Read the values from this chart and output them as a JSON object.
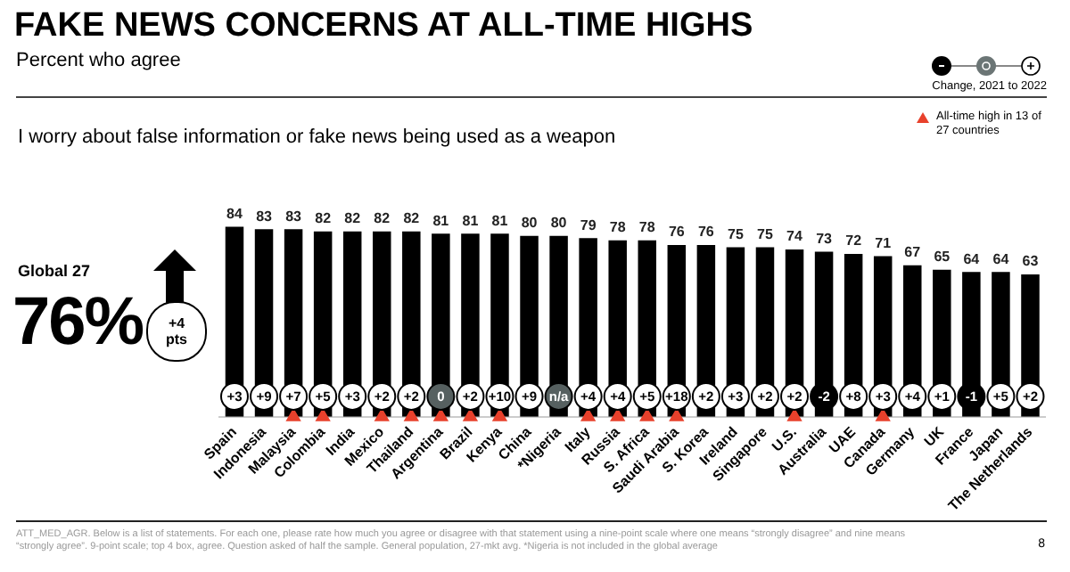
{
  "chart_data": {
    "type": "bar",
    "title": "FAKE NEWS CONCERNS AT ALL-TIME HIGHS",
    "subtitle": "Percent who agree",
    "categories": [
      "Spain",
      "Indonesia",
      "Malaysia",
      "Colombia",
      "India",
      "Mexico",
      "Thailand",
      "Argentina",
      "Brazil",
      "Kenya",
      "China",
      "*Nigeria",
      "Italy",
      "Russia",
      "S. Africa",
      "Saudi Arabia",
      "S. Korea",
      "Ireland",
      "Singapore",
      "U.S.",
      "Australia",
      "UAE",
      "Canada",
      "Germany",
      "UK",
      "France",
      "Japan",
      "The Netherlands"
    ],
    "series": [
      {
        "color": "#000000",
        "values": [
          84,
          83,
          83,
          82,
          82,
          82,
          82,
          81,
          81,
          81,
          80,
          80,
          79,
          78,
          78,
          76,
          76,
          75,
          75,
          74,
          73,
          72,
          71,
          67,
          65,
          64,
          64,
          63
        ],
        "value_labels": [
          "84",
          "83",
          "83",
          "82",
          "82",
          "82",
          "82",
          "81",
          "81",
          "81",
          "80",
          "80",
          "79",
          "78",
          "78",
          "76",
          "76",
          "75",
          "75",
          "74",
          "73",
          "72",
          "71",
          "67",
          "65",
          "64",
          "64",
          "63"
        ]
      },
      {
        "type": "scatter",
        "name": "All-time high in 13 of 27 countries",
        "color": "#e8412c",
        "marker": "triangle",
        "x": [
          "Malaysia",
          "Colombia",
          "Mexico",
          "Thailand",
          "Argentina",
          "Brazil",
          "Kenya",
          "Italy",
          "Russia",
          "S. Africa",
          "Saudi Arabia",
          "U.S.",
          "Canada"
        ],
        "values": [
          0,
          0,
          0,
          0,
          0,
          0,
          0,
          0,
          0,
          0,
          0,
          0,
          0
        ]
      }
    ],
    "legend": "top right",
    "grid": false,
    "annotations": [
      "I worry about false information or fake news being used as a weapon",
      "Global 27",
      "76%",
      "+4 pts",
      "Change, 2021 to 2022",
      "ATT_MED_AGR. Below is a list of statements. For each one, please rate how much you agree or disagree with that statement using a nine-point scale where one means “strongly disagree” and nine means “strongly agree”. 9-point scale; top 4 box, agree. Question asked of half the sample. General population, 27-mkt avg. *Nigeria is not included in the global average",
      "8",
      {
        "text": "+3",
        "x": "Spain",
        "y": 9
      },
      {
        "text": "+9",
        "x": "Indonesia",
        "y": 9
      },
      {
        "text": "+7",
        "x": "Malaysia",
        "y": 9
      },
      {
        "text": "+5",
        "x": "Colombia",
        "y": 9
      },
      {
        "text": "+3",
        "x": "India",
        "y": 9
      },
      {
        "text": "+2",
        "x": "Mexico",
        "y": 9
      },
      {
        "text": "+2",
        "x": "Thailand",
        "y": 9
      },
      {
        "text": "0",
        "x": "Argentina",
        "y": 9
      },
      {
        "text": "+2",
        "x": "Brazil",
        "y": 9
      },
      {
        "text": "+10",
        "x": "Kenya",
        "y": 9
      },
      {
        "text": "+9",
        "x": "China",
        "y": 9
      },
      {
        "text": "n/a",
        "x": "*Nigeria",
        "y": 9
      },
      {
        "text": "+4",
        "x": "Italy",
        "y": 9
      },
      {
        "text": "+4",
        "x": "Russia",
        "y": 9
      },
      {
        "text": "+5",
        "x": "S. Africa",
        "y": 9
      },
      {
        "text": "+18",
        "x": "Saudi Arabia",
        "y": 9
      },
      {
        "text": "+2",
        "x": "S. Korea",
        "y": 9
      },
      {
        "text": "+3",
        "x": "Ireland",
        "y": 9
      },
      {
        "text": "+2",
        "x": "Singapore",
        "y": 9
      },
      {
        "text": "+2",
        "x": "U.S.",
        "y": 9
      },
      {
        "text": "-2",
        "x": "Australia",
        "y": 9
      },
      {
        "text": "+8",
        "x": "UAE",
        "y": 9
      },
      {
        "text": "+3",
        "x": "Canada",
        "y": 9
      },
      {
        "text": "+4",
        "x": "Germany",
        "y": 9
      },
      {
        "text": "+1",
        "x": "UK",
        "y": 9
      },
      {
        "text": "-1",
        "x": "France",
        "y": 9
      },
      {
        "text": "+5",
        "x": "Japan",
        "y": 9
      },
      {
        "text": "+2",
        "x": "The Netherlands",
        "y": 9
      }
    ]
  }
}
